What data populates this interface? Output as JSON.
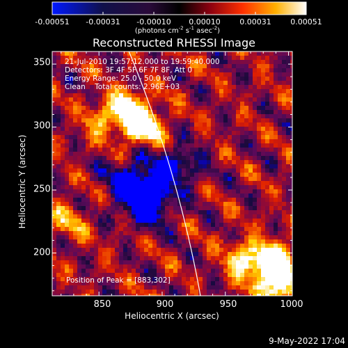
{
  "colorbar": {
    "tick_labels": [
      "-0.00051",
      "-0.00031",
      "-0.00010",
      "0.00010",
      "0.00031",
      "0.00051"
    ],
    "units_prefix": "(photons cm",
    "units_exp1": "-2",
    "units_mid1": " s",
    "units_exp2": "-1",
    "units_mid2": " asec",
    "units_exp3": "-2",
    "units_suffix": ")"
  },
  "plot": {
    "title": "Reconstructed RHESSI Image",
    "info_lines": [
      "21-Jul-2010 19:57:12.000 to 19:59:40.000",
      "Detectors: 3F 4F 5F 6F 7F 8F, Att 0",
      "Energy Range: 25.0 - 50.0 keV",
      "Clean    Total counts: 2.96E+03"
    ],
    "peak_label": "Position of Peak = [883,302]",
    "x_axis_label": "Heliocentric X (arcsec)",
    "y_axis_label": "Heliocentric Y (arcsec)",
    "x_tick_labels": [
      "850",
      "900",
      "950",
      "1000"
    ],
    "y_tick_labels": [
      "200",
      "250",
      "300",
      "350"
    ],
    "x_range": [
      813,
      1003
    ],
    "y_range": [
      166,
      360
    ],
    "x_ticks": [
      850,
      900,
      950,
      1000
    ],
    "y_ticks": [
      200,
      250,
      300,
      350
    ],
    "colormap": [
      "#0000ff",
      "#1a0a3a",
      "#5a0a5a",
      "#9a0a30",
      "#e02000",
      "#ff8000",
      "#ffd000",
      "#ffffff"
    ],
    "limb_color": "#ffffff",
    "peak_position": [
      883,
      302
    ]
  },
  "footer": {
    "timestamp": "9-May-2022 17:04"
  }
}
